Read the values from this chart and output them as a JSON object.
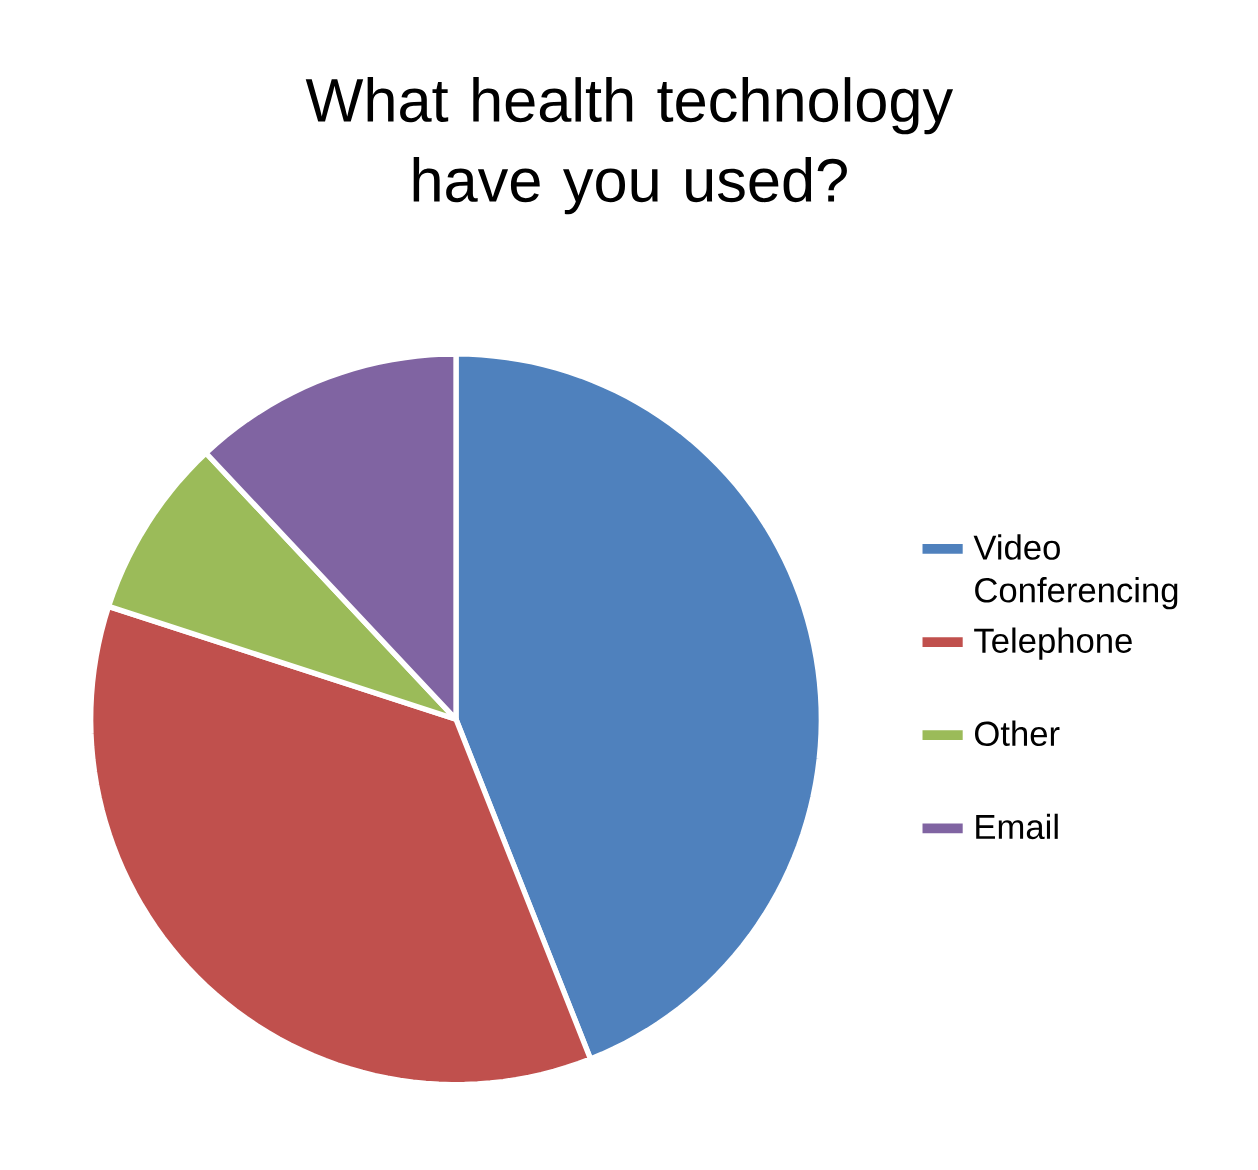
{
  "chart_data": {
    "type": "pie",
    "title": "What health technology have you used?",
    "categories": [
      "Video Conferencing",
      "Telephone",
      "Other",
      "Email"
    ],
    "values": [
      44,
      36,
      8,
      12
    ],
    "colors": [
      "#4f81bd",
      "#c0504d",
      "#9bbb59",
      "#8064a2"
    ],
    "legend": "right"
  }
}
